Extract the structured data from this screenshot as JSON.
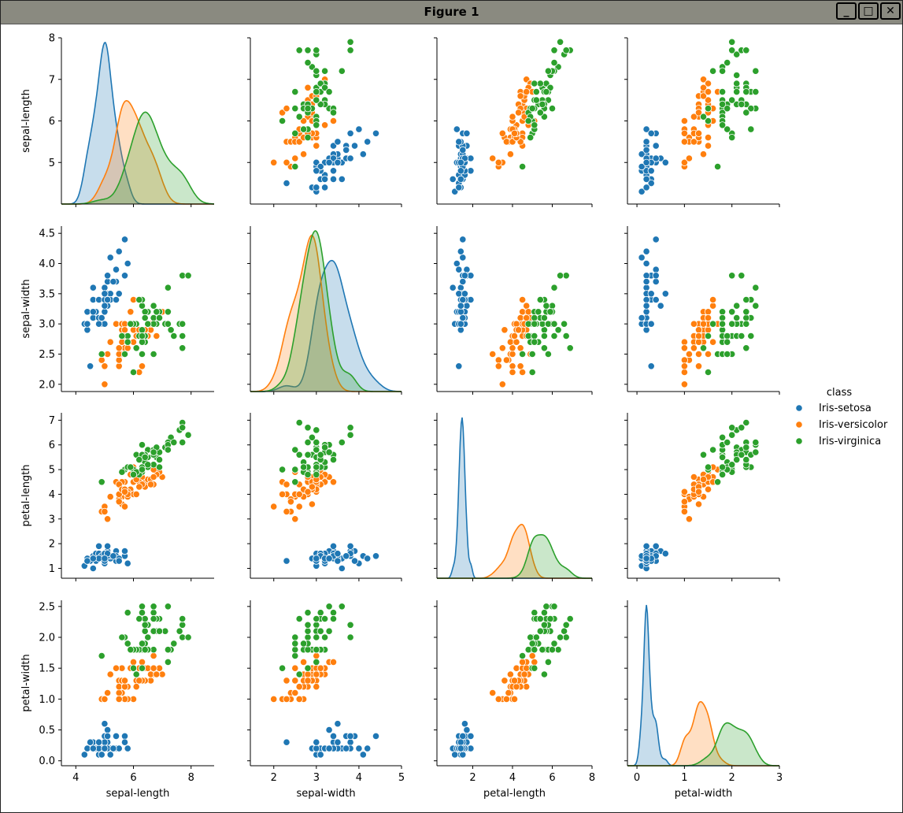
{
  "window": {
    "title": "Figure 1",
    "buttons": {
      "minimize": "_",
      "maximize": "□",
      "close": "✕"
    }
  },
  "chart_data": {
    "type": "pairplot",
    "variables": [
      "sepal-length",
      "sepal-width",
      "petal-length",
      "petal-width"
    ],
    "hue_title": "class",
    "classes": [
      "Iris-setosa",
      "Iris-versicolor",
      "Iris-virginica"
    ],
    "colors": [
      "#1f77b4",
      "#ff7f0e",
      "#2ca02c"
    ],
    "axes": {
      "sepal-length": {
        "lim": [
          3.5,
          8.8
        ],
        "ticks": [
          4,
          6,
          8
        ],
        "row_lim": [
          4.0,
          8.0
        ],
        "row_ticks": [
          5,
          6,
          7,
          8
        ]
      },
      "sepal-width": {
        "lim": [
          1.45,
          5.0
        ],
        "ticks": [
          2,
          3,
          4,
          5
        ],
        "row_lim": [
          1.88,
          4.62
        ],
        "row_ticks": [
          2.0,
          2.5,
          3.0,
          3.5,
          4.0,
          4.5
        ]
      },
      "petal-length": {
        "lim": [
          0.2,
          8.0
        ],
        "ticks": [
          2,
          4,
          6,
          8
        ],
        "row_lim": [
          0.6,
          7.3
        ],
        "row_ticks": [
          1,
          2,
          3,
          4,
          5,
          6,
          7
        ]
      },
      "petal-width": {
        "lim": [
          -0.2,
          3.0
        ],
        "ticks": [
          0,
          1,
          2,
          3
        ],
        "row_lim": [
          -0.08,
          2.6
        ],
        "row_ticks": [
          0.0,
          0.5,
          1.0,
          1.5,
          2.0,
          2.5
        ]
      }
    },
    "data": {
      "Iris-setosa": [
        [
          5.1,
          3.5,
          1.4,
          0.2
        ],
        [
          4.9,
          3.0,
          1.4,
          0.2
        ],
        [
          4.7,
          3.2,
          1.3,
          0.2
        ],
        [
          4.6,
          3.1,
          1.5,
          0.2
        ],
        [
          5.0,
          3.6,
          1.4,
          0.2
        ],
        [
          5.4,
          3.9,
          1.7,
          0.4
        ],
        [
          4.6,
          3.4,
          1.4,
          0.3
        ],
        [
          5.0,
          3.4,
          1.5,
          0.2
        ],
        [
          4.4,
          2.9,
          1.4,
          0.2
        ],
        [
          4.9,
          3.1,
          1.5,
          0.1
        ],
        [
          5.4,
          3.7,
          1.5,
          0.2
        ],
        [
          4.8,
          3.4,
          1.6,
          0.2
        ],
        [
          4.8,
          3.0,
          1.4,
          0.1
        ],
        [
          4.3,
          3.0,
          1.1,
          0.1
        ],
        [
          5.8,
          4.0,
          1.2,
          0.2
        ],
        [
          5.7,
          4.4,
          1.5,
          0.4
        ],
        [
          5.4,
          3.9,
          1.3,
          0.4
        ],
        [
          5.1,
          3.5,
          1.4,
          0.3
        ],
        [
          5.7,
          3.8,
          1.7,
          0.3
        ],
        [
          5.1,
          3.8,
          1.5,
          0.3
        ],
        [
          5.4,
          3.4,
          1.7,
          0.2
        ],
        [
          5.1,
          3.7,
          1.5,
          0.4
        ],
        [
          4.6,
          3.6,
          1.0,
          0.2
        ],
        [
          5.1,
          3.3,
          1.7,
          0.5
        ],
        [
          4.8,
          3.4,
          1.9,
          0.2
        ],
        [
          5.0,
          3.0,
          1.6,
          0.2
        ],
        [
          5.0,
          3.4,
          1.6,
          0.4
        ],
        [
          5.2,
          3.5,
          1.5,
          0.2
        ],
        [
          5.2,
          3.4,
          1.4,
          0.2
        ],
        [
          4.7,
          3.2,
          1.6,
          0.2
        ],
        [
          4.8,
          3.1,
          1.6,
          0.2
        ],
        [
          5.4,
          3.4,
          1.5,
          0.4
        ],
        [
          5.2,
          4.1,
          1.5,
          0.1
        ],
        [
          5.5,
          4.2,
          1.4,
          0.2
        ],
        [
          4.9,
          3.1,
          1.5,
          0.1
        ],
        [
          5.0,
          3.2,
          1.2,
          0.2
        ],
        [
          5.5,
          3.5,
          1.3,
          0.2
        ],
        [
          4.9,
          3.1,
          1.5,
          0.1
        ],
        [
          4.4,
          3.0,
          1.3,
          0.2
        ],
        [
          5.1,
          3.4,
          1.5,
          0.2
        ],
        [
          5.0,
          3.5,
          1.3,
          0.3
        ],
        [
          4.5,
          2.3,
          1.3,
          0.3
        ],
        [
          4.4,
          3.2,
          1.3,
          0.2
        ],
        [
          5.0,
          3.5,
          1.6,
          0.6
        ],
        [
          5.1,
          3.8,
          1.9,
          0.4
        ],
        [
          4.8,
          3.0,
          1.4,
          0.3
        ],
        [
          5.1,
          3.8,
          1.6,
          0.2
        ],
        [
          4.6,
          3.2,
          1.4,
          0.2
        ],
        [
          5.3,
          3.7,
          1.5,
          0.2
        ],
        [
          5.0,
          3.3,
          1.4,
          0.2
        ]
      ],
      "Iris-versicolor": [
        [
          7.0,
          3.2,
          4.7,
          1.4
        ],
        [
          6.4,
          3.2,
          4.5,
          1.5
        ],
        [
          6.9,
          3.1,
          4.9,
          1.5
        ],
        [
          5.5,
          2.3,
          4.0,
          1.3
        ],
        [
          6.5,
          2.8,
          4.6,
          1.5
        ],
        [
          5.7,
          2.8,
          4.5,
          1.3
        ],
        [
          6.3,
          3.3,
          4.7,
          1.6
        ],
        [
          4.9,
          2.4,
          3.3,
          1.0
        ],
        [
          6.6,
          2.9,
          4.6,
          1.3
        ],
        [
          5.2,
          2.7,
          3.9,
          1.4
        ],
        [
          5.0,
          2.0,
          3.5,
          1.0
        ],
        [
          5.9,
          3.0,
          4.2,
          1.5
        ],
        [
          6.0,
          2.2,
          4.0,
          1.0
        ],
        [
          6.1,
          2.9,
          4.7,
          1.4
        ],
        [
          5.6,
          2.9,
          3.6,
          1.3
        ],
        [
          6.7,
          3.1,
          4.4,
          1.4
        ],
        [
          5.6,
          3.0,
          4.5,
          1.5
        ],
        [
          5.8,
          2.7,
          4.1,
          1.0
        ],
        [
          6.2,
          2.2,
          4.5,
          1.5
        ],
        [
          5.6,
          2.5,
          3.9,
          1.1
        ],
        [
          5.9,
          3.2,
          4.8,
          1.8
        ],
        [
          6.1,
          2.8,
          4.0,
          1.3
        ],
        [
          6.3,
          2.5,
          4.9,
          1.5
        ],
        [
          6.1,
          2.8,
          4.7,
          1.2
        ],
        [
          6.4,
          2.9,
          4.3,
          1.3
        ],
        [
          6.6,
          3.0,
          4.4,
          1.4
        ],
        [
          6.8,
          2.8,
          4.8,
          1.4
        ],
        [
          6.7,
          3.0,
          5.0,
          1.7
        ],
        [
          6.0,
          2.9,
          4.5,
          1.5
        ],
        [
          5.7,
          2.6,
          3.5,
          1.0
        ],
        [
          5.5,
          2.4,
          3.8,
          1.1
        ],
        [
          5.5,
          2.4,
          3.7,
          1.0
        ],
        [
          5.8,
          2.7,
          3.9,
          1.2
        ],
        [
          6.0,
          2.7,
          5.1,
          1.6
        ],
        [
          5.4,
          3.0,
          4.5,
          1.5
        ],
        [
          6.0,
          3.4,
          4.5,
          1.6
        ],
        [
          6.7,
          3.1,
          4.7,
          1.5
        ],
        [
          6.3,
          2.3,
          4.4,
          1.3
        ],
        [
          5.6,
          3.0,
          4.1,
          1.3
        ],
        [
          5.5,
          2.5,
          4.0,
          1.3
        ],
        [
          5.5,
          2.6,
          4.4,
          1.2
        ],
        [
          6.1,
          3.0,
          4.6,
          1.4
        ],
        [
          5.8,
          2.6,
          4.0,
          1.2
        ],
        [
          5.0,
          2.3,
          3.3,
          1.0
        ],
        [
          5.6,
          2.7,
          4.2,
          1.3
        ],
        [
          5.7,
          3.0,
          4.2,
          1.2
        ],
        [
          5.7,
          2.9,
          4.2,
          1.3
        ],
        [
          6.2,
          2.9,
          4.3,
          1.3
        ],
        [
          5.1,
          2.5,
          3.0,
          1.1
        ],
        [
          5.7,
          2.8,
          4.1,
          1.3
        ]
      ],
      "Iris-virginica": [
        [
          6.3,
          3.3,
          6.0,
          2.5
        ],
        [
          5.8,
          2.7,
          5.1,
          1.9
        ],
        [
          7.1,
          3.0,
          5.9,
          2.1
        ],
        [
          6.3,
          2.9,
          5.6,
          1.8
        ],
        [
          6.5,
          3.0,
          5.8,
          2.2
        ],
        [
          7.6,
          3.0,
          6.6,
          2.1
        ],
        [
          4.9,
          2.5,
          4.5,
          1.7
        ],
        [
          7.3,
          2.9,
          6.3,
          1.8
        ],
        [
          6.7,
          2.5,
          5.8,
          1.8
        ],
        [
          7.2,
          3.6,
          6.1,
          2.5
        ],
        [
          6.5,
          3.2,
          5.1,
          2.0
        ],
        [
          6.4,
          2.7,
          5.3,
          1.9
        ],
        [
          6.8,
          3.0,
          5.5,
          2.1
        ],
        [
          5.7,
          2.5,
          5.0,
          2.0
        ],
        [
          5.8,
          2.8,
          5.1,
          2.4
        ],
        [
          6.4,
          3.2,
          5.3,
          2.3
        ],
        [
          6.5,
          3.0,
          5.5,
          1.8
        ],
        [
          7.7,
          3.8,
          6.7,
          2.2
        ],
        [
          7.7,
          2.6,
          6.9,
          2.3
        ],
        [
          6.0,
          2.2,
          5.0,
          1.5
        ],
        [
          6.9,
          3.2,
          5.7,
          2.3
        ],
        [
          5.6,
          2.8,
          4.9,
          2.0
        ],
        [
          7.7,
          2.8,
          6.7,
          2.0
        ],
        [
          6.3,
          2.7,
          4.9,
          1.8
        ],
        [
          6.7,
          3.3,
          5.7,
          2.1
        ],
        [
          7.2,
          3.2,
          6.0,
          1.8
        ],
        [
          6.2,
          2.8,
          4.8,
          1.8
        ],
        [
          6.1,
          3.0,
          4.9,
          1.8
        ],
        [
          6.4,
          2.8,
          5.6,
          2.1
        ],
        [
          7.2,
          3.0,
          5.8,
          1.6
        ],
        [
          7.4,
          2.8,
          6.1,
          1.9
        ],
        [
          7.9,
          3.8,
          6.4,
          2.0
        ],
        [
          6.4,
          2.8,
          5.6,
          2.2
        ],
        [
          6.3,
          2.8,
          5.1,
          1.5
        ],
        [
          6.1,
          2.6,
          5.6,
          1.4
        ],
        [
          7.7,
          3.0,
          6.1,
          2.3
        ],
        [
          6.3,
          3.4,
          5.6,
          2.4
        ],
        [
          6.4,
          3.1,
          5.5,
          1.8
        ],
        [
          6.0,
          3.0,
          4.8,
          1.8
        ],
        [
          6.9,
          3.1,
          5.4,
          2.1
        ],
        [
          6.7,
          3.1,
          5.6,
          2.4
        ],
        [
          6.9,
          3.1,
          5.1,
          2.3
        ],
        [
          5.8,
          2.7,
          5.1,
          1.9
        ],
        [
          6.8,
          3.2,
          5.9,
          2.3
        ],
        [
          6.7,
          3.3,
          5.7,
          2.5
        ],
        [
          6.7,
          3.0,
          5.2,
          2.3
        ],
        [
          6.3,
          2.5,
          5.0,
          1.9
        ],
        [
          6.5,
          3.0,
          5.2,
          2.0
        ],
        [
          6.2,
          3.4,
          5.4,
          2.3
        ],
        [
          5.9,
          3.0,
          5.1,
          1.8
        ]
      ]
    }
  }
}
